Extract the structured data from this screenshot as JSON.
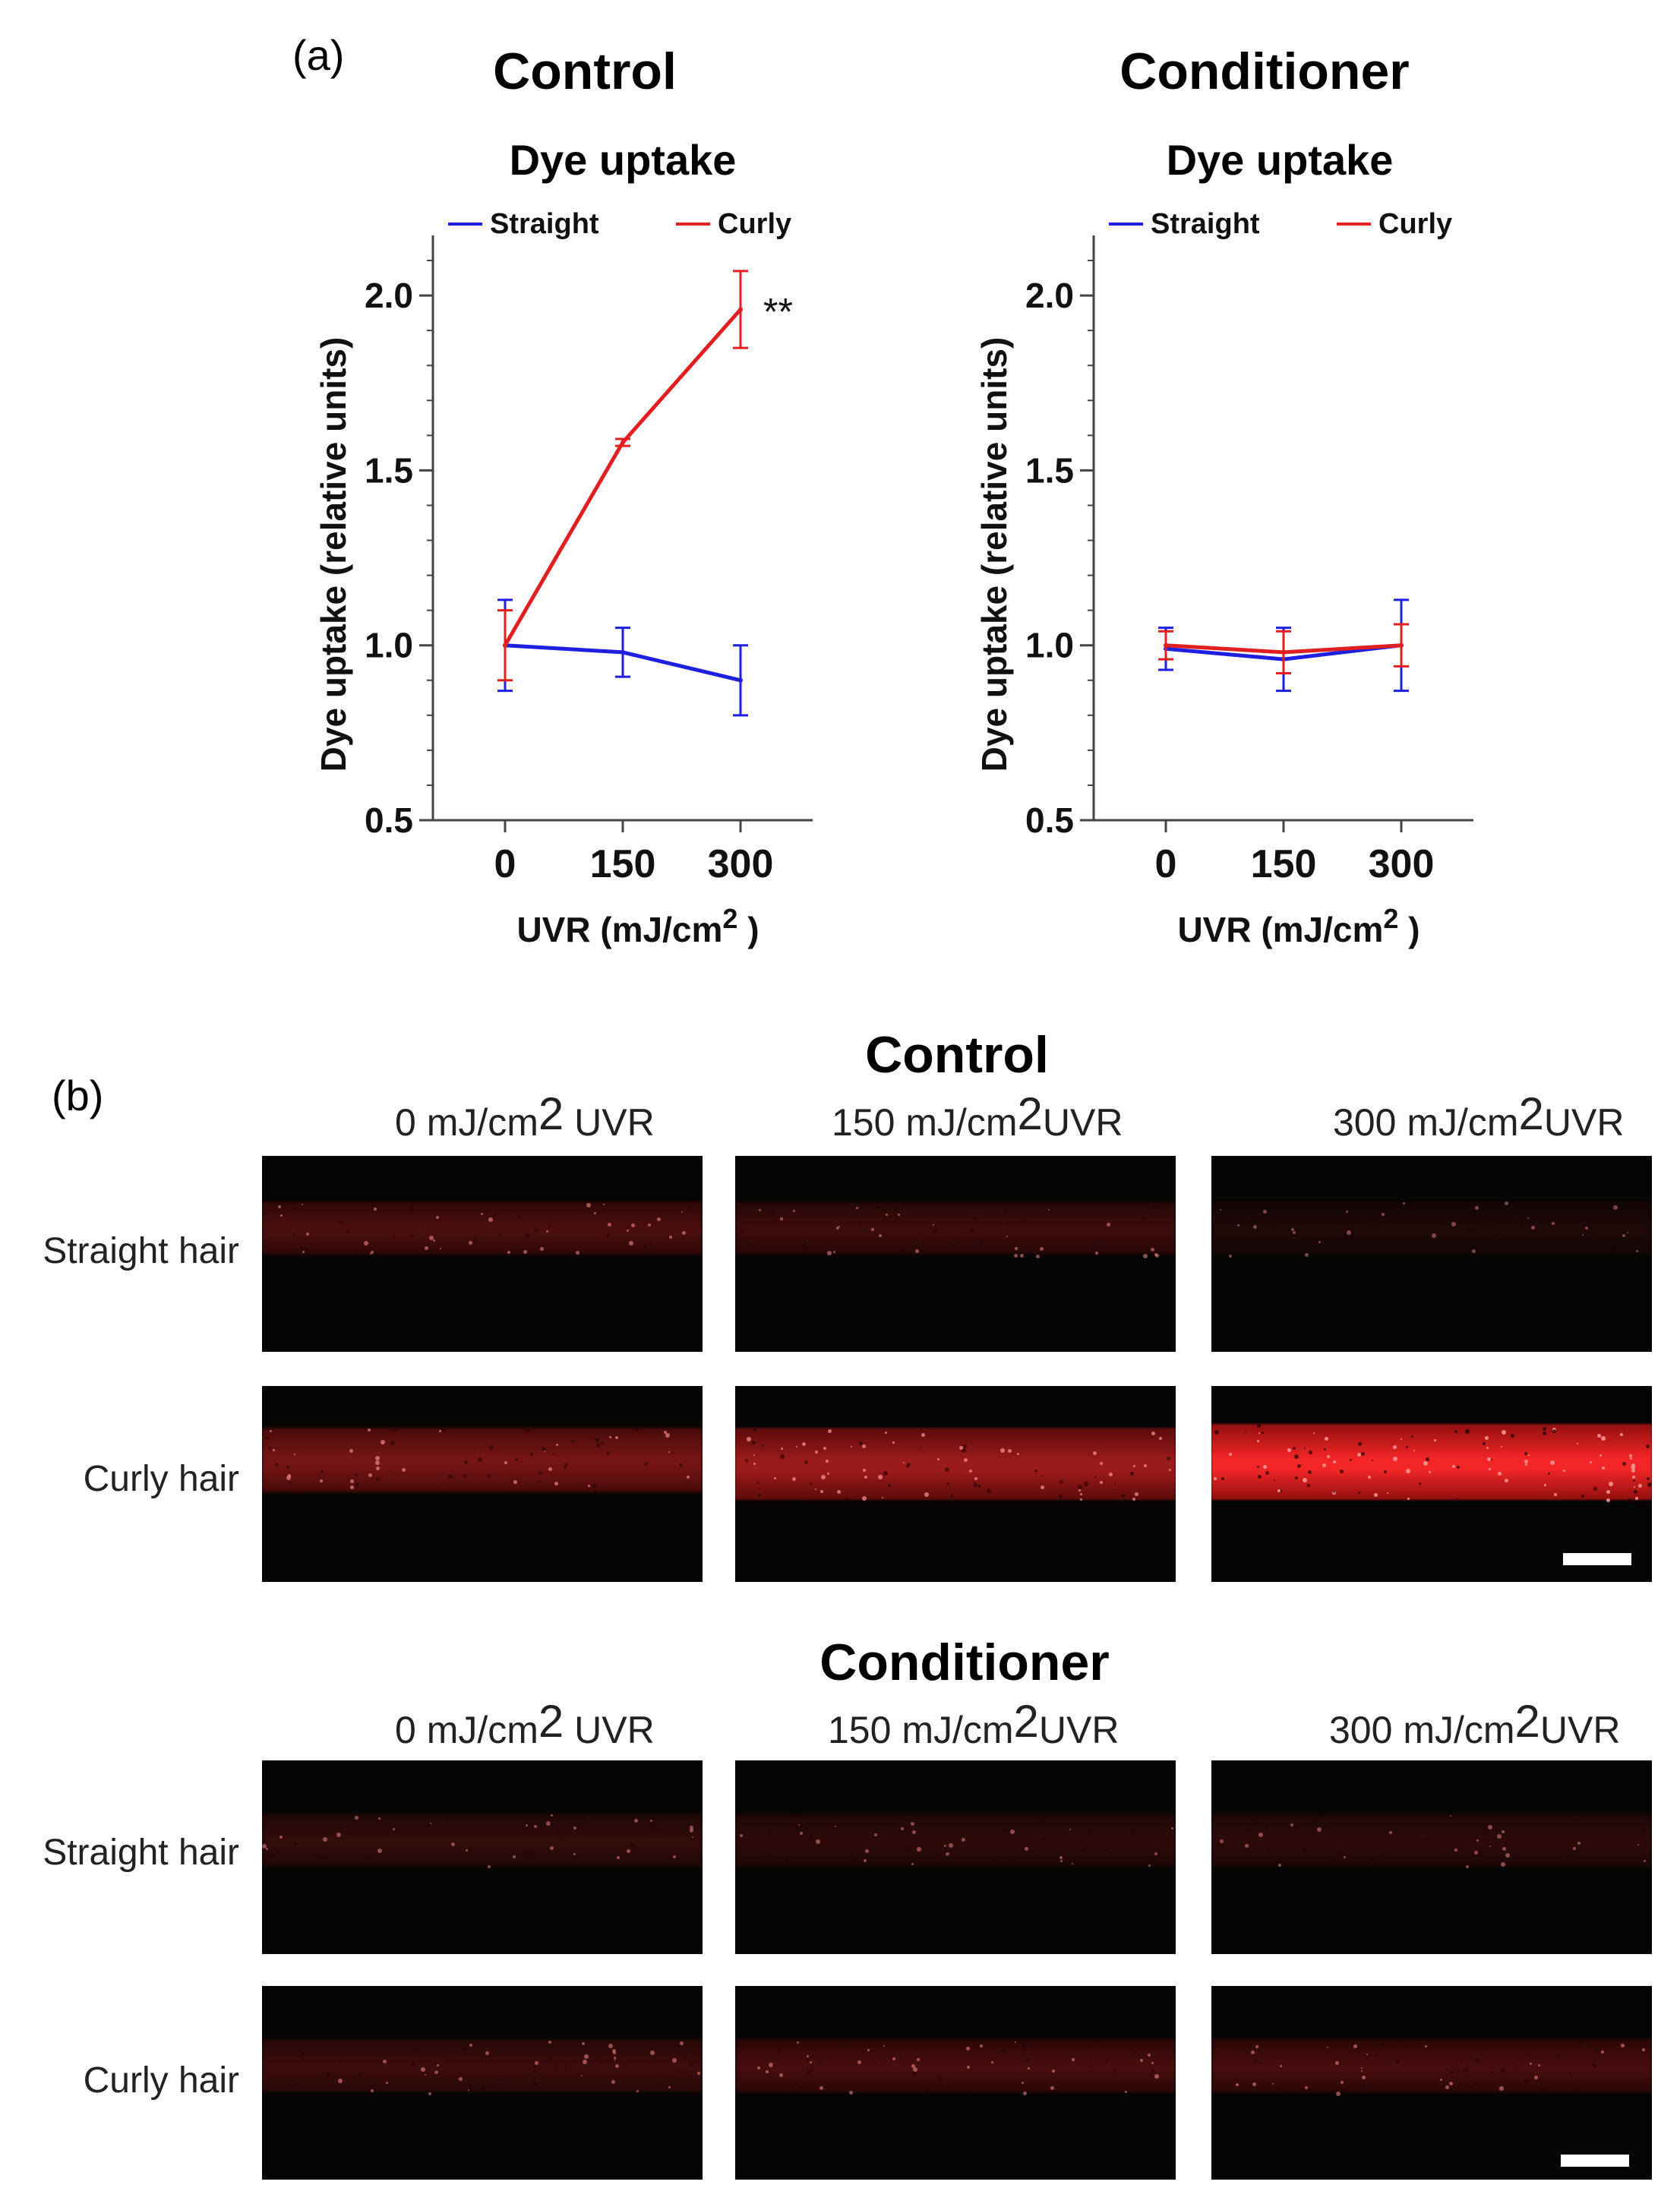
{
  "panel_a_label": "(a)",
  "panel_b_label": "(b)",
  "chart_data": [
    {
      "type": "line",
      "panel_title": "Control",
      "title": "Dye uptake",
      "xlabel": "UVR (mJ/cm",
      "xlabel_sup": "2",
      "xlabel_close": ")",
      "ylabel": "Dye uptake (relative units)",
      "x": [
        0,
        150,
        300
      ],
      "x_ticks": [
        "0",
        "150",
        "300"
      ],
      "y_ticks": [
        "0.5",
        "1.0",
        "1.5",
        "2.0"
      ],
      "ylim": [
        0.5,
        2.15
      ],
      "legend": [
        "Straight",
        "Curly"
      ],
      "series": [
        {
          "name": "Straight",
          "color": "#1f1fe0",
          "values": [
            1.0,
            0.98,
            0.9
          ],
          "errors": [
            0.13,
            0.07,
            0.1
          ]
        },
        {
          "name": "Curly",
          "color": "#e02020",
          "values": [
            1.0,
            1.58,
            1.96
          ],
          "errors": [
            0.1,
            0.01,
            0.11
          ]
        }
      ],
      "annotation": "**"
    },
    {
      "type": "line",
      "panel_title": "Conditioner",
      "title": "Dye uptake",
      "xlabel": "UVR (mJ/cm",
      "xlabel_sup": "2",
      "xlabel_close": ")",
      "ylabel": "Dye uptake (relative units)",
      "x": [
        0,
        150,
        300
      ],
      "x_ticks": [
        "0",
        "150",
        "300"
      ],
      "y_ticks": [
        "0.5",
        "1.0",
        "1.5",
        "2.0"
      ],
      "ylim": [
        0.5,
        2.15
      ],
      "legend": [
        "Straight",
        "Curly"
      ],
      "series": [
        {
          "name": "Straight",
          "color": "#1f1fe0",
          "values": [
            0.99,
            0.96,
            1.0
          ],
          "errors": [
            0.06,
            0.09,
            0.13
          ]
        },
        {
          "name": "Curly",
          "color": "#e02020",
          "values": [
            1.0,
            0.98,
            1.0
          ],
          "errors": [
            0.04,
            0.06,
            0.06
          ]
        }
      ],
      "annotation": ""
    }
  ],
  "micrographs": {
    "control_title": "Control",
    "conditioner_title": "Conditioner",
    "uvr_cols": [
      {
        "pre": "0 mJ/cm",
        "sup": "2",
        "post": " UVR"
      },
      {
        "pre": "150 mJ/cm",
        "sup": "2",
        "post": "UVR"
      },
      {
        "pre": "300 mJ/cm",
        "sup": "2",
        "post": "UVR"
      }
    ],
    "row_labels": [
      "Straight hair",
      "Curly hair"
    ],
    "control_intensity": [
      [
        0.28,
        0.22,
        0.1
      ],
      [
        0.45,
        0.6,
        0.95
      ]
    ],
    "conditioner_intensity": [
      [
        0.18,
        0.16,
        0.16
      ],
      [
        0.22,
        0.26,
        0.26
      ]
    ],
    "red": "#ff2a2a"
  }
}
